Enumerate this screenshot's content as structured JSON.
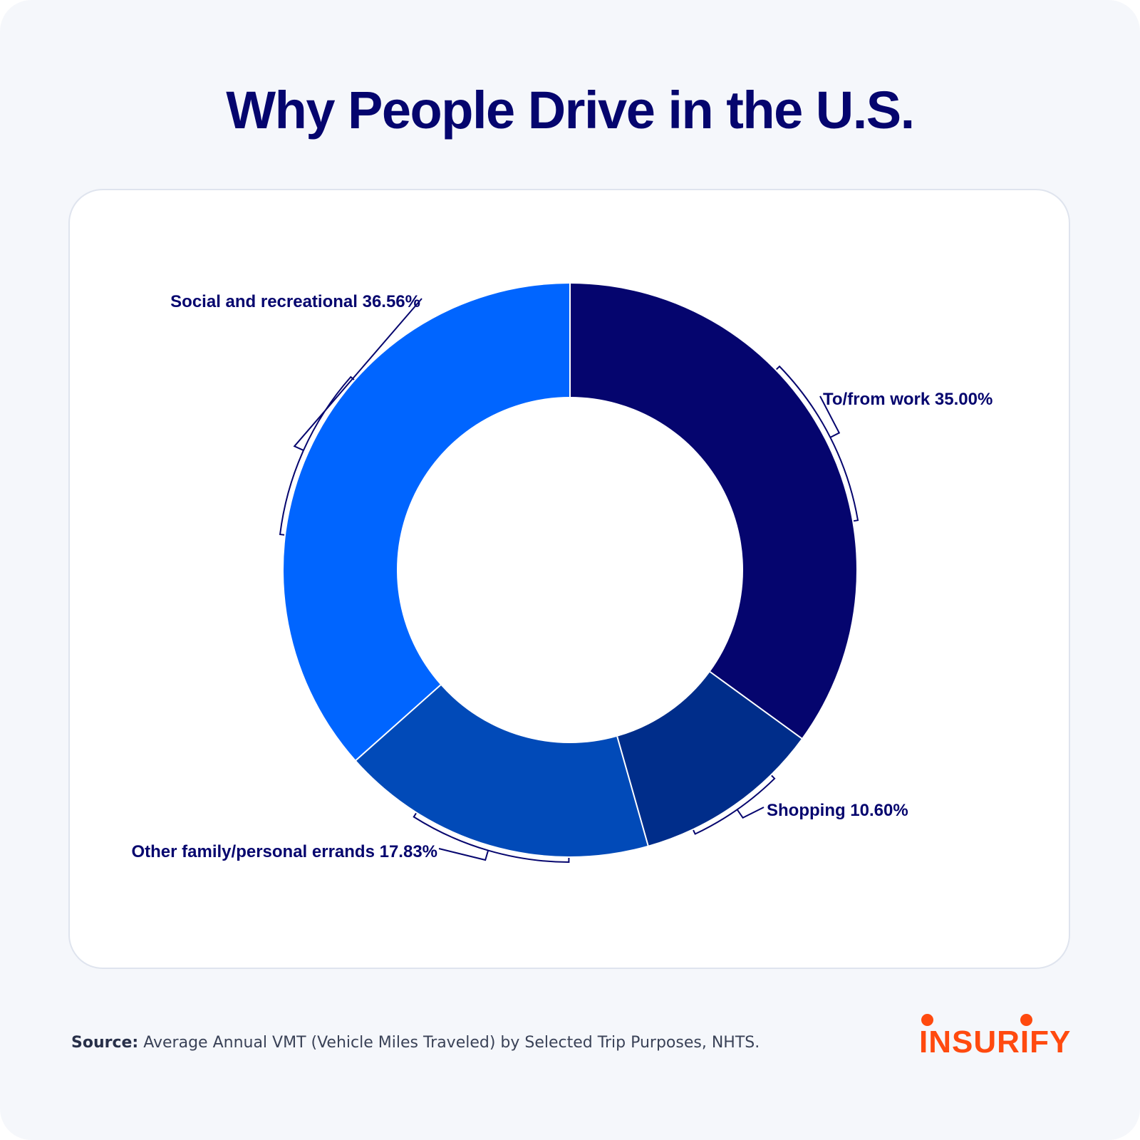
{
  "header": {
    "title": "Why People Drive in the U.S."
  },
  "chart_data": {
    "type": "pie",
    "subtype": "donut",
    "title": "Why People Drive in the U.S.",
    "unit": "%",
    "start_angle": "12 o'clock",
    "direction": "clockwise",
    "categories": [
      "To/from work",
      "Shopping",
      "Other family/personal errands",
      "Social and recreational"
    ],
    "values": [
      35.0,
      10.6,
      17.83,
      36.56
    ],
    "labels": [
      "To/from work 35.00%",
      "Shopping 10.60%",
      "Other family/personal errands 17.83%",
      "Social and recreational 36.56%"
    ],
    "colors": [
      "#05056e",
      "#002d8a",
      "#014ab8",
      "#0065ff"
    ],
    "legend": "none (direct labels)"
  },
  "footer": {
    "source_label": "Source:",
    "source_text": "Average Annual VMT (Vehicle Miles Traveled) by Selected Trip Purposes, NHTS."
  },
  "brand": {
    "logo_text": "INSURIFY",
    "color": "#ff4a0f"
  }
}
